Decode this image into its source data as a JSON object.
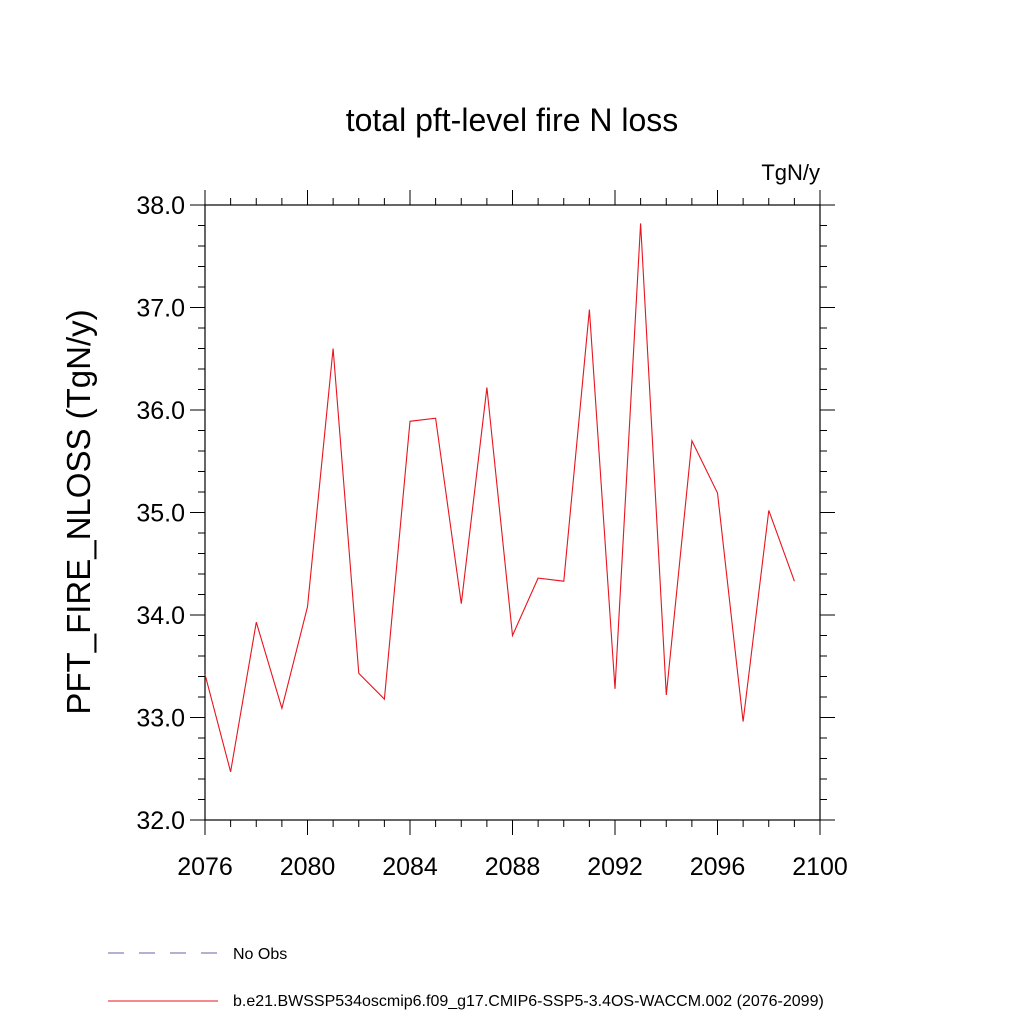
{
  "chart_data": {
    "type": "line",
    "title": "total pft-level fire N loss",
    "units_label": "TgN/y",
    "ylabel": "PFT_FIRE_NLOSS  (TgN/y)",
    "xlabel": "",
    "xlim": [
      2076,
      2100
    ],
    "ylim": [
      32.0,
      38.0
    ],
    "x_ticks": [
      "2076",
      "2080",
      "2084",
      "2088",
      "2092",
      "2096",
      "2100"
    ],
    "y_ticks": [
      "32.0",
      "33.0",
      "34.0",
      "35.0",
      "36.0",
      "37.0",
      "38.0"
    ],
    "x_tick_values": [
      2076,
      2080,
      2084,
      2088,
      2092,
      2096,
      2100
    ],
    "y_tick_values": [
      32,
      33,
      34,
      35,
      36,
      37,
      38
    ],
    "series": [
      {
        "name": "b.e21.BWSSP534oscmip6.f09_g17.CMIP6-SSP5-3.4OS-WACCM.002 (2076-2099)",
        "color": "#e8141e",
        "x": [
          2076,
          2077,
          2078,
          2079,
          2080,
          2081,
          2082,
          2083,
          2084,
          2085,
          2086,
          2087,
          2088,
          2089,
          2090,
          2091,
          2092,
          2093,
          2094,
          2095,
          2096,
          2097,
          2098,
          2099
        ],
        "values": [
          33.42,
          32.47,
          33.93,
          33.09,
          34.08,
          36.6,
          33.43,
          33.18,
          35.89,
          35.92,
          34.11,
          36.22,
          33.8,
          34.36,
          34.33,
          36.98,
          33.28,
          37.82,
          33.22,
          35.7,
          35.19,
          32.96,
          35.02,
          34.33
        ]
      }
    ],
    "legend": [
      {
        "label": "No Obs",
        "style": "dashed",
        "color": "#6e5fa8"
      },
      {
        "label": "b.e21.BWSSP534oscmip6.f09_g17.CMIP6-SSP5-3.4OS-WACCM.002 (2076-2099)",
        "style": "solid",
        "color": "#e8141e"
      }
    ],
    "legend_placement": "bottom-left"
  }
}
